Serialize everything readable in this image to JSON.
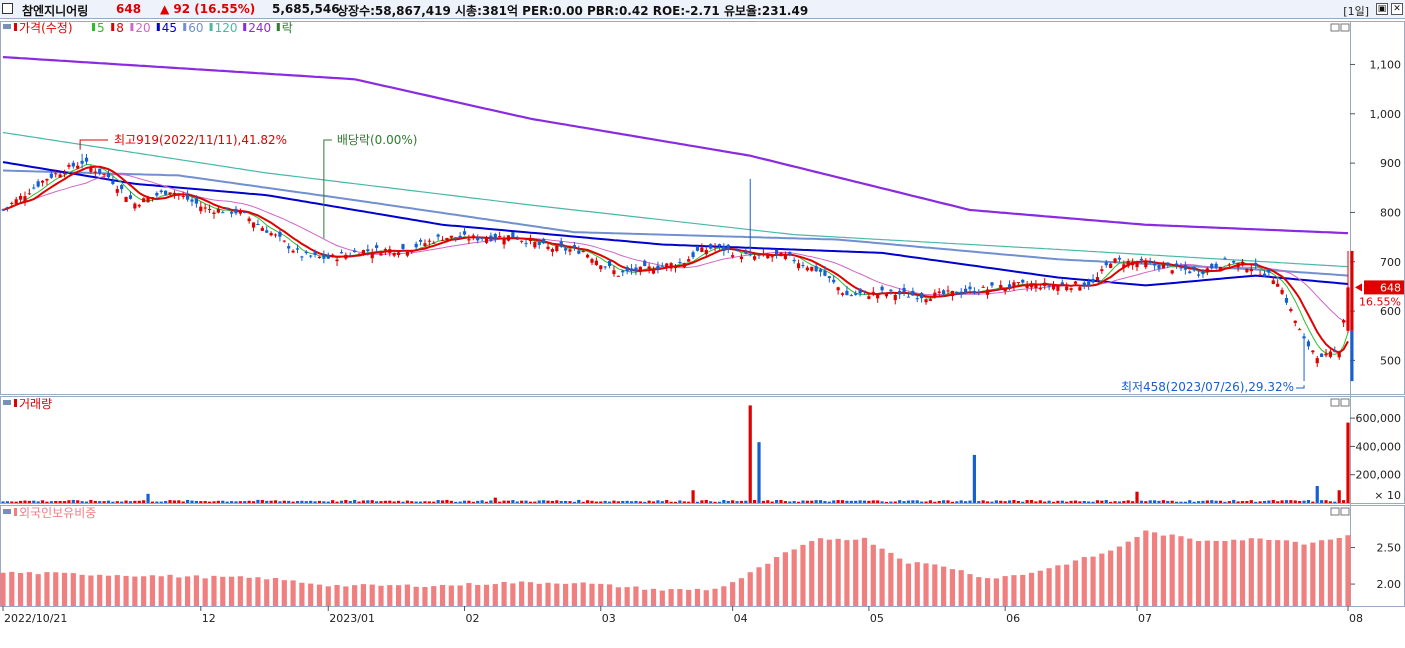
{
  "header": {
    "stock_name": "참엔지니어링",
    "price": "648",
    "change": "▲ 92 (16.55%)",
    "volume": "5,685,546",
    "stats": "상장수:58,867,419 시총:381억 PER:0.00 PBR:0.42 ROE:-2.71 유보율:231.49",
    "period": "[1일]",
    "restore_glyph": "▣",
    "close_glyph": "✕"
  },
  "price_panel": {
    "legend": [
      {
        "label": "가격(수정)",
        "color": "#e00000"
      },
      {
        "label": "5",
        "color": "#2bbd2b"
      },
      {
        "label": "8",
        "color": "#e00000"
      },
      {
        "label": "20",
        "color": "#d066c8"
      },
      {
        "label": "45",
        "color": "#0000d0"
      },
      {
        "label": "60",
        "color": "#7090d0"
      },
      {
        "label": "120",
        "color": "#48b8a8"
      },
      {
        "label": "240",
        "color": "#8a2be2"
      },
      {
        "label": "락",
        "color": "#2d7d2d"
      }
    ],
    "high_annotation": "최고919(2022/11/11),41.82%",
    "dividend_annotation": "배당락(0.00%)",
    "low_annotation": "최저458(2023/07/26),29.32%",
    "current_price_tag": "648",
    "current_change_tag": "16.55%",
    "y_ticks": [
      "1,100",
      "1,000",
      "900",
      "800",
      "700",
      "600",
      "500"
    ]
  },
  "volume_panel": {
    "title": "거래량",
    "y_ticks": [
      "600,000",
      "400,000",
      "200,000"
    ],
    "unit_label": "× 10"
  },
  "foreign_panel": {
    "title": "외국인보유비중",
    "y_ticks": [
      "2.50",
      "2.00"
    ]
  },
  "x_axis": {
    "labels": [
      "2022/10/21",
      "12",
      "2023/01",
      "02",
      "03",
      "04",
      "05",
      "06",
      "07",
      "08"
    ]
  },
  "colors": {
    "up": "#e00000",
    "down": "#1560d0",
    "ma5": "#2bbd2b",
    "ma8": "#e00000",
    "ma20": "#d066c8",
    "ma45": "#0000d0",
    "ma60": "#7090d0",
    "ma120": "#48b8a8",
    "ma240": "#8a2be2",
    "foreign_bar": "#f08080"
  },
  "chart_data": {
    "type": "candlestick",
    "x_labels": [
      "2022/10/21",
      "12",
      "2023/01",
      "02",
      "03",
      "04",
      "05",
      "06",
      "07",
      "08"
    ],
    "price_ylim": [
      440,
      1180
    ],
    "price_ticks": [
      500,
      600,
      700,
      800,
      900,
      1000,
      1100
    ],
    "key_points": [
      {
        "label": "high",
        "date": "2022/11/11",
        "value": 919,
        "pct": 41.82
      },
      {
        "label": "low",
        "date": "2023/07/26",
        "value": 458,
        "pct": 29.32
      },
      {
        "label": "last",
        "value": 648,
        "change": 92,
        "change_pct": 16.55
      }
    ],
    "close_anchors": [
      [
        0,
        805
      ],
      [
        10,
        870
      ],
      [
        18,
        902
      ],
      [
        24,
        872
      ],
      [
        30,
        818
      ],
      [
        38,
        845
      ],
      [
        46,
        808
      ],
      [
        54,
        800
      ],
      [
        62,
        752
      ],
      [
        68,
        712
      ],
      [
        74,
        707
      ],
      [
        82,
        722
      ],
      [
        92,
        726
      ],
      [
        100,
        750
      ],
      [
        108,
        748
      ],
      [
        116,
        752
      ],
      [
        124,
        728
      ],
      [
        132,
        722
      ],
      [
        140,
        675
      ],
      [
        148,
        688
      ],
      [
        155,
        700
      ],
      [
        158,
        720
      ],
      [
        162,
        730
      ],
      [
        170,
        710
      ],
      [
        178,
        712
      ],
      [
        186,
        680
      ],
      [
        192,
        632
      ],
      [
        200,
        637
      ],
      [
        210,
        630
      ],
      [
        220,
        640
      ],
      [
        230,
        652
      ],
      [
        240,
        652
      ],
      [
        248,
        655
      ],
      [
        252,
        702
      ],
      [
        258,
        698
      ],
      [
        266,
        688
      ],
      [
        272,
        678
      ],
      [
        278,
        700
      ],
      [
        284,
        690
      ],
      [
        290,
        662
      ],
      [
        296,
        540
      ],
      [
        300,
        502
      ],
      [
        304,
        522
      ],
      [
        306,
        648
      ]
    ],
    "ma240_anchors": [
      [
        0,
        1115
      ],
      [
        80,
        1070
      ],
      [
        120,
        990
      ],
      [
        170,
        915
      ],
      [
        220,
        805
      ],
      [
        260,
        775
      ],
      [
        306,
        758
      ]
    ],
    "ma120_anchors": [
      [
        0,
        962
      ],
      [
        60,
        880
      ],
      [
        120,
        815
      ],
      [
        180,
        755
      ],
      [
        240,
        725
      ],
      [
        306,
        690
      ]
    ],
    "ma60_anchors": [
      [
        0,
        885
      ],
      [
        40,
        875
      ],
      [
        80,
        825
      ],
      [
        130,
        760
      ],
      [
        190,
        745
      ],
      [
        240,
        705
      ],
      [
        290,
        682
      ],
      [
        306,
        672
      ]
    ],
    "ma45_anchors": [
      [
        0,
        902
      ],
      [
        30,
        858
      ],
      [
        60,
        835
      ],
      [
        100,
        775
      ],
      [
        150,
        735
      ],
      [
        200,
        718
      ],
      [
        240,
        668
      ],
      [
        260,
        652
      ],
      [
        285,
        672
      ],
      [
        306,
        655
      ]
    ],
    "volume_ylim": [
      0,
      700000
    ],
    "volume_ticks": [
      200000,
      400000,
      600000
    ],
    "volume_spikes": [
      {
        "index": 170,
        "value": 690000,
        "direction": "up"
      },
      {
        "index": 172,
        "value": 430000,
        "direction": "down"
      },
      {
        "index": 221,
        "value": 340000,
        "direction": "down"
      },
      {
        "index": 157,
        "value": 90000,
        "direction": "up"
      },
      {
        "index": 33,
        "value": 65000,
        "direction": "down"
      },
      {
        "index": 112,
        "value": 38000,
        "direction": "up"
      },
      {
        "index": 258,
        "value": 80000,
        "direction": "up"
      },
      {
        "index": 299,
        "value": 120000,
        "direction": "down"
      },
      {
        "index": 304,
        "value": 90000,
        "direction": "up"
      },
      {
        "index": 306,
        "value": 568554,
        "direction": "up"
      }
    ],
    "foreign_ylim": [
      1.7,
      3.0
    ],
    "foreign_ticks": [
      2.0,
      2.5
    ],
    "foreign_anchors": [
      [
        0,
        2.16
      ],
      [
        15,
        2.14
      ],
      [
        30,
        2.12
      ],
      [
        60,
        2.08
      ],
      [
        75,
        1.98
      ],
      [
        100,
        1.98
      ],
      [
        115,
        2.02
      ],
      [
        130,
        2.02
      ],
      [
        150,
        1.92
      ],
      [
        162,
        1.93
      ],
      [
        168,
        2.08
      ],
      [
        178,
        2.42
      ],
      [
        186,
        2.62
      ],
      [
        196,
        2.62
      ],
      [
        206,
        2.3
      ],
      [
        214,
        2.25
      ],
      [
        224,
        2.08
      ],
      [
        232,
        2.13
      ],
      [
        240,
        2.25
      ],
      [
        252,
        2.45
      ],
      [
        260,
        2.72
      ],
      [
        272,
        2.6
      ],
      [
        290,
        2.62
      ],
      [
        296,
        2.56
      ],
      [
        306,
        2.66
      ]
    ],
    "foreign_last_index": 306
  }
}
